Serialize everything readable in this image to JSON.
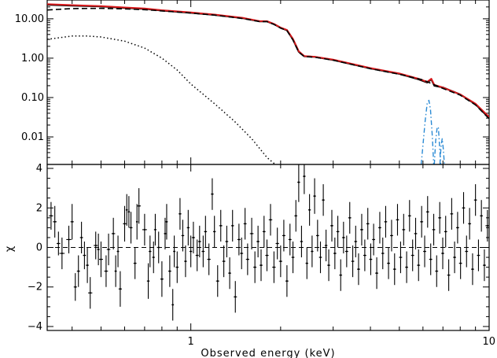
{
  "chart_data": [
    {
      "panel": "spectrum",
      "type": "line",
      "xscale": "log",
      "yscale": "log",
      "xlim": [
        0.33,
        10
      ],
      "ylim": [
        0.002,
        30
      ],
      "ylabel": "",
      "yticks": [
        {
          "value": 10,
          "label": "10.00"
        },
        {
          "value": 1,
          "label": "1.00"
        },
        {
          "value": 0.1,
          "label": "0.10"
        },
        {
          "value": 0.01,
          "label": "0.01"
        }
      ],
      "series": [
        {
          "style": "data-black",
          "color": "#000000",
          "points": [
            [
              0.33,
              22.8
            ],
            [
              0.4,
              21.6
            ],
            [
              0.5,
              20.6
            ],
            [
              0.6,
              18.9
            ],
            [
              0.7,
              17.8
            ],
            [
              0.8,
              16.2
            ],
            [
              1.0,
              14.2
            ],
            [
              1.2,
              12.6
            ],
            [
              1.5,
              10.3
            ],
            [
              1.7,
              8.6
            ],
            [
              1.8,
              8.6
            ],
            [
              1.9,
              7.3
            ],
            [
              2.0,
              5.9
            ],
            [
              2.1,
              5.1
            ],
            [
              2.2,
              3.0
            ],
            [
              2.3,
              1.45
            ],
            [
              2.4,
              1.12
            ],
            [
              2.6,
              1.08
            ],
            [
              3.0,
              0.9
            ],
            [
              4.0,
              0.55
            ],
            [
              5.0,
              0.4
            ],
            [
              5.8,
              0.29
            ],
            [
              6.2,
              0.24
            ],
            [
              6.4,
              0.29
            ],
            [
              6.55,
              0.2
            ],
            [
              7.0,
              0.18
            ],
            [
              8.0,
              0.12
            ],
            [
              9.0,
              0.068
            ],
            [
              10.0,
              0.03
            ]
          ]
        },
        {
          "style": "model-total-red",
          "color": "#d7191c",
          "points": [
            [
              0.33,
              23.5
            ],
            [
              0.4,
              22.2
            ],
            [
              0.5,
              21.0
            ],
            [
              0.6,
              19.4
            ],
            [
              0.7,
              18.3
            ],
            [
              0.8,
              16.5
            ],
            [
              1.0,
              14.5
            ],
            [
              1.2,
              12.8
            ],
            [
              1.5,
              10.5
            ],
            [
              1.7,
              8.7
            ],
            [
              1.8,
              8.7
            ],
            [
              1.9,
              7.4
            ],
            [
              2.0,
              6.0
            ],
            [
              2.1,
              5.2
            ],
            [
              2.2,
              3.1
            ],
            [
              2.3,
              1.5
            ],
            [
              2.4,
              1.13
            ],
            [
              2.6,
              1.09
            ],
            [
              3.0,
              0.92
            ],
            [
              4.0,
              0.56
            ],
            [
              5.0,
              0.41
            ],
            [
              5.8,
              0.3
            ],
            [
              6.2,
              0.25
            ],
            [
              6.4,
              0.3
            ],
            [
              6.55,
              0.21
            ],
            [
              7.0,
              0.18
            ],
            [
              8.0,
              0.12
            ],
            [
              9.0,
              0.07
            ],
            [
              10.0,
              0.032
            ]
          ]
        },
        {
          "style": "continuum-dashed",
          "color": "#000000",
          "points": [
            [
              0.33,
              16.7
            ],
            [
              0.4,
              18.2
            ],
            [
              0.5,
              18.4
            ],
            [
              0.6,
              17.8
            ],
            [
              0.7,
              17.0
            ],
            [
              0.8,
              15.8
            ],
            [
              1.0,
              14.0
            ],
            [
              1.2,
              12.4
            ],
            [
              1.5,
              10.1
            ],
            [
              1.7,
              8.5
            ],
            [
              1.8,
              8.5
            ],
            [
              1.9,
              7.2
            ],
            [
              2.0,
              5.8
            ],
            [
              2.1,
              5.0
            ],
            [
              2.2,
              2.9
            ],
            [
              2.3,
              1.42
            ],
            [
              2.4,
              1.1
            ],
            [
              2.6,
              1.06
            ],
            [
              3.0,
              0.89
            ],
            [
              4.0,
              0.54
            ],
            [
              5.0,
              0.39
            ],
            [
              6.0,
              0.28
            ],
            [
              7.0,
              0.17
            ],
            [
              8.0,
              0.115
            ],
            [
              9.0,
              0.065
            ],
            [
              10.0,
              0.029
            ]
          ]
        },
        {
          "style": "soft-component-dotted",
          "color": "#000000",
          "points": [
            [
              0.33,
              3.0
            ],
            [
              0.4,
              3.65
            ],
            [
              0.45,
              3.65
            ],
            [
              0.5,
              3.45
            ],
            [
              0.6,
              2.7
            ],
            [
              0.7,
              1.8
            ],
            [
              0.8,
              1.0
            ],
            [
              0.9,
              0.5
            ],
            [
              1.0,
              0.22
            ],
            [
              1.2,
              0.07
            ],
            [
              1.4,
              0.025
            ],
            [
              1.6,
              0.009
            ],
            [
              1.8,
              0.003
            ],
            [
              1.92,
              0.002
            ]
          ]
        },
        {
          "style": "line-dashdot-blue",
          "color": "#2a8ad4",
          "points": [
            [
              5.92,
              0.002
            ],
            [
              6.0,
              0.006
            ],
            [
              6.1,
              0.025
            ],
            [
              6.2,
              0.07
            ],
            [
              6.28,
              0.085
            ],
            [
              6.36,
              0.05
            ],
            [
              6.45,
              0.01
            ],
            [
              6.52,
              0.002
            ]
          ]
        },
        {
          "style": "line-dashdot-blue",
          "color": "#2a8ad4",
          "points": [
            [
              6.55,
              0.002
            ],
            [
              6.62,
              0.008
            ],
            [
              6.7,
              0.018
            ],
            [
              6.76,
              0.017
            ],
            [
              6.82,
              0.006
            ],
            [
              6.88,
              0.002
            ]
          ]
        },
        {
          "style": "line-dashdot-blue",
          "color": "#2a8ad4",
          "points": [
            [
              6.84,
              0.002
            ],
            [
              6.9,
              0.006
            ],
            [
              6.96,
              0.009
            ],
            [
              7.02,
              0.005
            ],
            [
              7.08,
              0.002
            ]
          ]
        }
      ]
    },
    {
      "panel": "residuals",
      "type": "scatter",
      "xscale": "log",
      "xlim": [
        0.33,
        10
      ],
      "ylim": [
        -4.2,
        4.2
      ],
      "ylabel": "χ",
      "xlabel": "Observed energy (keV)",
      "yticks": [
        {
          "value": 4,
          "label": "4"
        },
        {
          "value": 2,
          "label": "2"
        },
        {
          "value": 0,
          "label": "0"
        },
        {
          "value": -2,
          "label": "−2"
        },
        {
          "value": -4,
          "label": "−4"
        }
      ],
      "xticks": [
        {
          "value": 1,
          "label": "1"
        },
        {
          "value": 10,
          "label": "10"
        }
      ],
      "baseline": 0,
      "points": [
        [
          0.34,
          1.6,
          0.7
        ],
        [
          0.35,
          1.3,
          0.8
        ],
        [
          0.36,
          0.2,
          0.6
        ],
        [
          0.37,
          -0.3,
          0.8
        ],
        [
          0.39,
          0.4,
          0.7
        ],
        [
          0.4,
          1.3,
          0.9
        ],
        [
          0.41,
          -2.0,
          0.7
        ],
        [
          0.42,
          -1.2,
          0.8
        ],
        [
          0.43,
          0.5,
          0.8
        ],
        [
          0.44,
          -0.4,
          0.7
        ],
        [
          0.45,
          -0.9,
          0.9
        ],
        [
          0.46,
          -2.3,
          0.8
        ],
        [
          0.48,
          0.1,
          0.7
        ],
        [
          0.49,
          -0.1,
          0.8
        ],
        [
          0.5,
          -0.6,
          0.9
        ],
        [
          0.52,
          -1.2,
          0.8
        ],
        [
          0.53,
          -0.1,
          0.8
        ],
        [
          0.55,
          0.7,
          0.8
        ],
        [
          0.56,
          -1.2,
          0.8
        ],
        [
          0.57,
          -0.2,
          0.8
        ],
        [
          0.58,
          -2.1,
          0.9
        ],
        [
          0.6,
          1.2,
          0.9
        ],
        [
          0.61,
          1.9,
          0.8
        ],
        [
          0.62,
          1.8,
          0.8
        ],
        [
          0.63,
          1.0,
          0.8
        ],
        [
          0.65,
          -0.8,
          0.8
        ],
        [
          0.66,
          1.3,
          0.9
        ],
        [
          0.67,
          2.1,
          0.9
        ],
        [
          0.7,
          0.9,
          0.8
        ],
        [
          0.72,
          -1.7,
          0.9
        ],
        [
          0.73,
          -0.2,
          0.8
        ],
        [
          0.75,
          -0.5,
          0.8
        ],
        [
          0.76,
          0.9,
          0.8
        ],
        [
          0.78,
          0.0,
          0.8
        ],
        [
          0.8,
          -1.6,
          0.9
        ],
        [
          0.82,
          0.7,
          0.8
        ],
        [
          0.83,
          1.3,
          0.9
        ],
        [
          0.85,
          -1.2,
          0.8
        ],
        [
          0.87,
          -2.9,
          0.8
        ],
        [
          0.88,
          -0.2,
          0.8
        ],
        [
          0.9,
          -1.0,
          0.8
        ],
        [
          0.92,
          1.7,
          0.8
        ],
        [
          0.94,
          0.6,
          0.8
        ],
        [
          0.96,
          -0.7,
          0.8
        ],
        [
          0.98,
          1.0,
          0.9
        ],
        [
          1.0,
          -0.2,
          0.8
        ],
        [
          1.02,
          0.5,
          0.8
        ],
        [
          1.05,
          -0.4,
          0.8
        ],
        [
          1.07,
          0.3,
          0.8
        ],
        [
          1.1,
          -0.2,
          0.8
        ],
        [
          1.12,
          0.8,
          0.8
        ],
        [
          1.15,
          -0.6,
          0.8
        ],
        [
          1.18,
          2.7,
          0.8
        ],
        [
          1.2,
          0.8,
          0.8
        ],
        [
          1.23,
          -1.7,
          0.8
        ],
        [
          1.26,
          1.1,
          0.8
        ],
        [
          1.29,
          -0.7,
          0.8
        ],
        [
          1.32,
          0.3,
          0.8
        ],
        [
          1.35,
          -1.3,
          0.8
        ],
        [
          1.38,
          1.1,
          0.8
        ],
        [
          1.41,
          -2.5,
          0.8
        ],
        [
          1.45,
          0.4,
          0.8
        ],
        [
          1.48,
          -0.3,
          0.8
        ],
        [
          1.52,
          1.2,
          0.8
        ],
        [
          1.55,
          -0.6,
          0.8
        ],
        [
          1.6,
          0.7,
          0.8
        ],
        [
          1.64,
          -1.0,
          0.8
        ],
        [
          1.68,
          0.3,
          0.8
        ],
        [
          1.72,
          -0.9,
          0.8
        ],
        [
          1.76,
          0.8,
          0.8
        ],
        [
          1.8,
          -0.4,
          0.8
        ],
        [
          1.85,
          1.4,
          0.8
        ],
        [
          1.9,
          -1.0,
          0.8
        ],
        [
          1.95,
          0.2,
          0.8
        ],
        [
          2.0,
          -0.7,
          0.8
        ],
        [
          2.05,
          0.6,
          0.8
        ],
        [
          2.1,
          -1.7,
          0.8
        ],
        [
          2.15,
          0.4,
          0.8
        ],
        [
          2.2,
          -0.5,
          0.8
        ],
        [
          2.25,
          1.6,
          0.8
        ],
        [
          2.3,
          3.3,
          1.0
        ],
        [
          2.35,
          0.3,
          0.8
        ],
        [
          2.4,
          3.6,
          0.9
        ],
        [
          2.45,
          -0.8,
          0.8
        ],
        [
          2.5,
          1.9,
          0.8
        ],
        [
          2.55,
          -0.2,
          0.8
        ],
        [
          2.6,
          2.6,
          0.9
        ],
        [
          2.66,
          0.6,
          0.8
        ],
        [
          2.72,
          -0.5,
          0.8
        ],
        [
          2.78,
          2.4,
          0.8
        ],
        [
          2.84,
          0.1,
          0.8
        ],
        [
          2.9,
          -0.9,
          0.8
        ],
        [
          2.97,
          1.1,
          0.8
        ],
        [
          3.04,
          -0.3,
          0.8
        ],
        [
          3.11,
          0.8,
          0.8
        ],
        [
          3.18,
          -1.4,
          0.8
        ],
        [
          3.25,
          0.5,
          0.8
        ],
        [
          3.33,
          -0.2,
          0.8
        ],
        [
          3.41,
          1.5,
          0.8
        ],
        [
          3.49,
          -0.7,
          0.8
        ],
        [
          3.57,
          0.3,
          0.8
        ],
        [
          3.65,
          -1.1,
          0.8
        ],
        [
          3.74,
          0.9,
          0.8
        ],
        [
          3.83,
          -0.4,
          0.8
        ],
        [
          3.92,
          1.2,
          0.8
        ],
        [
          4.01,
          -0.6,
          0.8
        ],
        [
          4.1,
          0.4,
          0.8
        ],
        [
          4.2,
          -1.3,
          0.8
        ],
        [
          4.3,
          1.0,
          0.8
        ],
        [
          4.4,
          -0.3,
          0.8
        ],
        [
          4.5,
          1.3,
          0.8
        ],
        [
          4.6,
          -0.8,
          0.8
        ],
        [
          4.71,
          0.6,
          0.8
        ],
        [
          4.82,
          -1.1,
          0.8
        ],
        [
          4.93,
          1.4,
          0.8
        ],
        [
          5.05,
          -0.5,
          0.8
        ],
        [
          5.17,
          0.9,
          0.8
        ],
        [
          5.29,
          -1.0,
          0.8
        ],
        [
          5.41,
          1.6,
          0.8
        ],
        [
          5.54,
          -0.4,
          0.8
        ],
        [
          5.67,
          0.7,
          0.8
        ],
        [
          5.8,
          -0.9,
          0.8
        ],
        [
          5.94,
          1.3,
          0.8
        ],
        [
          6.08,
          -0.2,
          0.8
        ],
        [
          6.22,
          1.8,
          0.8
        ],
        [
          6.37,
          -0.6,
          0.8
        ],
        [
          6.52,
          0.9,
          0.8
        ],
        [
          6.67,
          -1.2,
          0.8
        ],
        [
          6.83,
          1.5,
          0.8
        ],
        [
          6.99,
          -0.3,
          0.8
        ],
        [
          7.15,
          0.8,
          0.8
        ],
        [
          7.32,
          -1.4,
          0.8
        ],
        [
          7.49,
          1.7,
          0.8
        ],
        [
          7.66,
          -0.5,
          0.8
        ],
        [
          7.84,
          1.0,
          0.8
        ],
        [
          8.02,
          -0.8,
          0.8
        ],
        [
          8.21,
          2.0,
          0.8
        ],
        [
          8.4,
          -0.2,
          0.8
        ],
        [
          8.6,
          1.2,
          0.8
        ],
        [
          8.8,
          -1.1,
          0.8
        ],
        [
          9.0,
          2.4,
          0.8
        ],
        [
          9.21,
          -0.4,
          0.8
        ],
        [
          9.42,
          1.6,
          0.8
        ],
        [
          9.64,
          -0.9,
          0.8
        ],
        [
          9.87,
          1.1,
          0.8
        ]
      ]
    }
  ]
}
